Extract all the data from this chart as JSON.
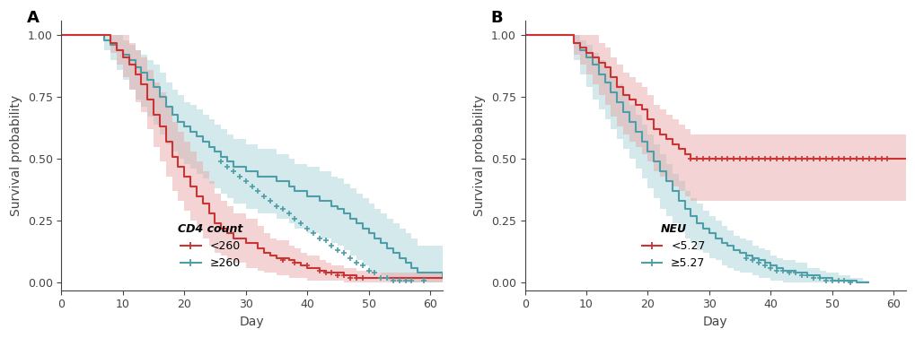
{
  "panel_A": {
    "label": "A",
    "xlabel": "Day",
    "ylabel": "Survival probability",
    "legend_title": "CD4 count",
    "legend_items": [
      "<260",
      "≥260"
    ],
    "red_color": "#CC3333",
    "blue_color": "#4D9EA8",
    "red_fill": "#E8A8A8",
    "blue_fill": "#A8D4D8",
    "red_line_x": [
      0,
      7,
      8,
      9,
      10,
      11,
      12,
      13,
      14,
      15,
      16,
      17,
      18,
      19,
      20,
      21,
      22,
      23,
      24,
      25,
      26,
      27,
      28,
      30,
      32,
      33,
      34,
      35,
      37,
      38,
      39,
      40,
      42,
      43,
      44,
      46,
      47,
      48,
      49,
      51,
      52,
      55,
      56,
      57,
      60,
      62
    ],
    "red_line_y": [
      1.0,
      1.0,
      0.97,
      0.94,
      0.91,
      0.88,
      0.84,
      0.8,
      0.74,
      0.68,
      0.63,
      0.57,
      0.51,
      0.47,
      0.43,
      0.39,
      0.35,
      0.32,
      0.28,
      0.24,
      0.22,
      0.2,
      0.18,
      0.16,
      0.14,
      0.12,
      0.11,
      0.1,
      0.09,
      0.08,
      0.07,
      0.06,
      0.05,
      0.04,
      0.04,
      0.03,
      0.03,
      0.02,
      0.02,
      0.02,
      0.02,
      0.02,
      0.02,
      0.02,
      0.02,
      0.02
    ],
    "red_upper_x": [
      0,
      7,
      8,
      9,
      10,
      11,
      12,
      13,
      14,
      15,
      16,
      17,
      18,
      19,
      20,
      21,
      22,
      23,
      24,
      25,
      26,
      27,
      28,
      30,
      32,
      33,
      34,
      35,
      37,
      38,
      39,
      40,
      42,
      43,
      44,
      46,
      47,
      48,
      49,
      51,
      52,
      55,
      56,
      57,
      60,
      62
    ],
    "red_upper_y": [
      1.0,
      1.0,
      1.0,
      1.0,
      1.0,
      0.97,
      0.94,
      0.91,
      0.86,
      0.81,
      0.77,
      0.71,
      0.65,
      0.61,
      0.57,
      0.53,
      0.49,
      0.45,
      0.41,
      0.36,
      0.33,
      0.31,
      0.28,
      0.26,
      0.23,
      0.2,
      0.18,
      0.17,
      0.15,
      0.14,
      0.12,
      0.11,
      0.09,
      0.08,
      0.07,
      0.06,
      0.06,
      0.05,
      0.05,
      0.04,
      0.04,
      0.04,
      0.04,
      0.04,
      0.04,
      0.04
    ],
    "red_lower_x": [
      0,
      7,
      8,
      9,
      10,
      11,
      12,
      13,
      14,
      15,
      16,
      17,
      18,
      19,
      20,
      21,
      22,
      23,
      24,
      25,
      26,
      27,
      28,
      30,
      32,
      33,
      34,
      35,
      37,
      38,
      39,
      40,
      42,
      43,
      44,
      46,
      47,
      48,
      49,
      51,
      52,
      55,
      56,
      57,
      60,
      62
    ],
    "red_lower_y": [
      1.0,
      1.0,
      0.93,
      0.88,
      0.83,
      0.78,
      0.73,
      0.69,
      0.62,
      0.55,
      0.49,
      0.43,
      0.37,
      0.33,
      0.29,
      0.25,
      0.21,
      0.18,
      0.15,
      0.12,
      0.11,
      0.09,
      0.08,
      0.06,
      0.05,
      0.04,
      0.04,
      0.03,
      0.02,
      0.02,
      0.02,
      0.01,
      0.01,
      0.01,
      0.01,
      0.0,
      0.0,
      0.0,
      0.0,
      0.0,
      0.0,
      0.0,
      0.0,
      0.0,
      0.0,
      0.0
    ],
    "blue_line_x": [
      0,
      5,
      7,
      8,
      9,
      10,
      11,
      12,
      13,
      14,
      15,
      16,
      17,
      18,
      19,
      20,
      21,
      22,
      23,
      24,
      25,
      26,
      27,
      28,
      30,
      32,
      35,
      37,
      38,
      40,
      42,
      44,
      45,
      46,
      47,
      48,
      49,
      50,
      51,
      52,
      53,
      54,
      55,
      56,
      57,
      58,
      62
    ],
    "blue_line_y": [
      1.0,
      1.0,
      0.98,
      0.96,
      0.94,
      0.92,
      0.9,
      0.87,
      0.85,
      0.82,
      0.79,
      0.75,
      0.71,
      0.68,
      0.65,
      0.63,
      0.61,
      0.59,
      0.57,
      0.55,
      0.53,
      0.51,
      0.49,
      0.47,
      0.45,
      0.43,
      0.41,
      0.39,
      0.37,
      0.35,
      0.33,
      0.31,
      0.3,
      0.28,
      0.26,
      0.24,
      0.22,
      0.2,
      0.18,
      0.16,
      0.14,
      0.12,
      0.1,
      0.08,
      0.06,
      0.04,
      0.02
    ],
    "blue_upper_x": [
      0,
      5,
      7,
      8,
      9,
      10,
      11,
      12,
      13,
      14,
      15,
      16,
      17,
      18,
      19,
      20,
      21,
      22,
      23,
      24,
      25,
      26,
      27,
      28,
      30,
      32,
      35,
      37,
      38,
      40,
      42,
      44,
      45,
      46,
      47,
      48,
      49,
      50,
      51,
      52,
      53,
      54,
      55,
      56,
      57,
      58,
      62
    ],
    "blue_upper_y": [
      1.0,
      1.0,
      1.0,
      1.0,
      1.0,
      0.98,
      0.96,
      0.94,
      0.92,
      0.9,
      0.88,
      0.85,
      0.81,
      0.78,
      0.76,
      0.73,
      0.72,
      0.7,
      0.68,
      0.66,
      0.64,
      0.62,
      0.6,
      0.58,
      0.56,
      0.54,
      0.52,
      0.5,
      0.48,
      0.47,
      0.45,
      0.43,
      0.42,
      0.4,
      0.38,
      0.36,
      0.34,
      0.32,
      0.3,
      0.28,
      0.26,
      0.24,
      0.22,
      0.2,
      0.18,
      0.15,
      0.12
    ],
    "blue_lower_x": [
      0,
      5,
      7,
      8,
      9,
      10,
      11,
      12,
      13,
      14,
      15,
      16,
      17,
      18,
      19,
      20,
      21,
      22,
      23,
      24,
      25,
      26,
      27,
      28,
      30,
      32,
      35,
      37,
      38,
      40,
      42,
      44,
      45,
      46,
      47,
      48,
      49,
      50,
      51,
      52,
      53,
      54,
      55,
      56,
      57,
      58,
      62
    ],
    "blue_lower_y": [
      1.0,
      1.0,
      0.94,
      0.9,
      0.86,
      0.82,
      0.78,
      0.74,
      0.71,
      0.67,
      0.64,
      0.6,
      0.56,
      0.53,
      0.5,
      0.48,
      0.46,
      0.44,
      0.42,
      0.4,
      0.38,
      0.36,
      0.34,
      0.32,
      0.3,
      0.28,
      0.26,
      0.24,
      0.22,
      0.2,
      0.18,
      0.16,
      0.15,
      0.13,
      0.11,
      0.09,
      0.07,
      0.05,
      0.04,
      0.03,
      0.01,
      0.01,
      0.0,
      0.0,
      0.0,
      0.0,
      0.0
    ],
    "red_censored_x": [
      36,
      38,
      40,
      42,
      43,
      44,
      45,
      46,
      47,
      48,
      49
    ],
    "red_censored_y": [
      0.09,
      0.08,
      0.07,
      0.05,
      0.04,
      0.04,
      0.03,
      0.03,
      0.02,
      0.02,
      0.02
    ],
    "blue_censored_x": [
      26,
      27,
      28,
      29,
      30,
      31,
      32,
      33,
      34,
      35,
      36,
      37,
      38,
      39,
      40,
      41,
      42,
      43,
      44,
      45,
      46,
      47,
      48,
      49,
      50,
      51,
      52,
      53,
      54,
      55,
      56,
      57,
      59
    ],
    "blue_censored_y": [
      0.49,
      0.47,
      0.45,
      0.43,
      0.41,
      0.39,
      0.37,
      0.35,
      0.33,
      0.31,
      0.3,
      0.28,
      0.26,
      0.24,
      0.22,
      0.2,
      0.18,
      0.17,
      0.15,
      0.13,
      0.12,
      0.1,
      0.08,
      0.07,
      0.05,
      0.04,
      0.02,
      0.02,
      0.01,
      0.01,
      0.01,
      0.01,
      0.01
    ],
    "xlim": [
      0,
      62
    ],
    "ylim": [
      -0.03,
      1.06
    ],
    "xticks": [
      0,
      10,
      20,
      30,
      40,
      50,
      60
    ],
    "yticks": [
      0.0,
      0.25,
      0.5,
      0.75,
      1.0
    ]
  },
  "panel_B": {
    "label": "B",
    "xlabel": "Day",
    "ylabel": "Survival probability",
    "legend_title": "NEU",
    "legend_items": [
      "<5.27",
      "≥5.27"
    ],
    "red_color": "#CC3333",
    "blue_color": "#4D9EA8",
    "red_fill": "#E8A8A8",
    "blue_fill": "#A8D4D8",
    "red_line_x": [
      0,
      7,
      8,
      9,
      10,
      11,
      12,
      13,
      14,
      15,
      16,
      17,
      18,
      19,
      20,
      21,
      22,
      23,
      24,
      25,
      26,
      27,
      28,
      30,
      32,
      35,
      37,
      38,
      40,
      42,
      44,
      46,
      48,
      50,
      52,
      54,
      56,
      60,
      62
    ],
    "red_line_y": [
      1.0,
      1.0,
      0.97,
      0.95,
      0.93,
      0.91,
      0.89,
      0.87,
      0.83,
      0.79,
      0.76,
      0.74,
      0.72,
      0.7,
      0.66,
      0.62,
      0.6,
      0.58,
      0.56,
      0.54,
      0.52,
      0.5,
      0.5,
      0.5,
      0.5,
      0.5,
      0.5,
      0.5,
      0.5,
      0.5,
      0.5,
      0.5,
      0.5,
      0.5,
      0.5,
      0.5,
      0.5,
      0.5,
      0.5
    ],
    "red_upper_x": [
      0,
      7,
      8,
      9,
      10,
      11,
      12,
      13,
      14,
      15,
      16,
      17,
      18,
      19,
      20,
      21,
      22,
      23,
      24,
      25,
      26,
      27,
      28,
      30,
      32,
      35,
      37,
      38,
      40,
      42,
      44,
      46,
      48,
      50,
      52,
      54,
      56,
      60,
      62
    ],
    "red_upper_y": [
      1.0,
      1.0,
      1.0,
      1.0,
      1.0,
      1.0,
      0.97,
      0.95,
      0.91,
      0.88,
      0.85,
      0.83,
      0.81,
      0.79,
      0.76,
      0.72,
      0.7,
      0.68,
      0.66,
      0.64,
      0.62,
      0.6,
      0.6,
      0.6,
      0.6,
      0.6,
      0.6,
      0.6,
      0.6,
      0.6,
      0.6,
      0.6,
      0.6,
      0.6,
      0.6,
      0.6,
      0.6,
      0.6,
      0.6
    ],
    "red_lower_x": [
      0,
      7,
      8,
      9,
      10,
      11,
      12,
      13,
      14,
      15,
      16,
      17,
      18,
      19,
      20,
      21,
      22,
      23,
      24,
      25,
      26,
      27,
      28,
      30,
      32,
      35,
      37,
      38,
      40,
      42,
      44,
      46,
      48,
      50,
      52,
      54,
      56,
      60,
      62
    ],
    "red_lower_y": [
      1.0,
      1.0,
      0.92,
      0.88,
      0.84,
      0.8,
      0.76,
      0.72,
      0.67,
      0.63,
      0.6,
      0.57,
      0.55,
      0.52,
      0.49,
      0.45,
      0.43,
      0.41,
      0.39,
      0.37,
      0.35,
      0.33,
      0.33,
      0.33,
      0.33,
      0.33,
      0.33,
      0.33,
      0.33,
      0.33,
      0.33,
      0.33,
      0.33,
      0.33,
      0.33,
      0.33,
      0.33,
      0.33,
      0.33
    ],
    "blue_line_x": [
      0,
      6,
      8,
      9,
      10,
      11,
      12,
      13,
      14,
      15,
      16,
      17,
      18,
      19,
      20,
      21,
      22,
      23,
      24,
      25,
      26,
      27,
      28,
      29,
      30,
      31,
      32,
      33,
      34,
      35,
      36,
      37,
      38,
      39,
      40,
      41,
      42,
      43,
      44,
      45,
      46,
      47,
      48,
      49,
      50,
      51,
      52,
      53,
      54,
      55,
      56
    ],
    "blue_line_y": [
      1.0,
      1.0,
      0.97,
      0.94,
      0.91,
      0.88,
      0.84,
      0.81,
      0.77,
      0.73,
      0.69,
      0.65,
      0.61,
      0.57,
      0.53,
      0.49,
      0.45,
      0.41,
      0.37,
      0.33,
      0.3,
      0.27,
      0.24,
      0.22,
      0.2,
      0.18,
      0.16,
      0.15,
      0.13,
      0.12,
      0.11,
      0.1,
      0.09,
      0.08,
      0.07,
      0.06,
      0.05,
      0.05,
      0.04,
      0.04,
      0.03,
      0.03,
      0.02,
      0.02,
      0.01,
      0.01,
      0.01,
      0.01,
      0.0,
      0.0,
      0.0
    ],
    "blue_upper_x": [
      0,
      6,
      8,
      9,
      10,
      11,
      12,
      13,
      14,
      15,
      16,
      17,
      18,
      19,
      20,
      21,
      22,
      23,
      24,
      25,
      26,
      27,
      28,
      29,
      30,
      31,
      32,
      33,
      34,
      35,
      36,
      37,
      38,
      39,
      40,
      41,
      42,
      43,
      44,
      45,
      46,
      47,
      48,
      49,
      50,
      51,
      52,
      53,
      54,
      55,
      56
    ],
    "blue_upper_y": [
      1.0,
      1.0,
      1.0,
      0.98,
      0.96,
      0.93,
      0.9,
      0.87,
      0.83,
      0.8,
      0.76,
      0.72,
      0.68,
      0.64,
      0.6,
      0.56,
      0.52,
      0.48,
      0.44,
      0.41,
      0.37,
      0.34,
      0.32,
      0.29,
      0.27,
      0.25,
      0.23,
      0.21,
      0.19,
      0.18,
      0.17,
      0.15,
      0.14,
      0.13,
      0.11,
      0.1,
      0.09,
      0.09,
      0.08,
      0.08,
      0.06,
      0.06,
      0.05,
      0.04,
      0.04,
      0.03,
      0.03,
      0.02,
      0.02,
      0.01,
      0.01
    ],
    "blue_lower_x": [
      0,
      6,
      8,
      9,
      10,
      11,
      12,
      13,
      14,
      15,
      16,
      17,
      18,
      19,
      20,
      21,
      22,
      23,
      24,
      25,
      26,
      27,
      28,
      29,
      30,
      31,
      32,
      33,
      34,
      35,
      36,
      37,
      38,
      39,
      40,
      41,
      42,
      43,
      44,
      45,
      46,
      47,
      48,
      49,
      50,
      51,
      52,
      53,
      54,
      55,
      56
    ],
    "blue_lower_y": [
      1.0,
      1.0,
      0.9,
      0.84,
      0.79,
      0.74,
      0.7,
      0.66,
      0.62,
      0.58,
      0.54,
      0.5,
      0.46,
      0.42,
      0.38,
      0.34,
      0.3,
      0.27,
      0.24,
      0.21,
      0.18,
      0.16,
      0.13,
      0.12,
      0.1,
      0.09,
      0.07,
      0.06,
      0.05,
      0.04,
      0.04,
      0.03,
      0.02,
      0.02,
      0.01,
      0.01,
      0.0,
      0.0,
      0.0,
      0.0,
      0.0,
      0.0,
      0.0,
      0.0,
      0.0,
      0.0,
      0.0,
      0.0,
      0.0,
      0.0,
      0.0
    ],
    "red_censored_x": [
      27,
      28,
      29,
      30,
      31,
      32,
      33,
      34,
      35,
      36,
      37,
      38,
      39,
      40,
      41,
      42,
      43,
      44,
      45,
      46,
      47,
      48,
      49,
      50,
      51,
      52,
      53,
      54,
      55,
      56,
      57,
      58,
      59
    ],
    "red_censored_y": [
      0.5,
      0.5,
      0.5,
      0.5,
      0.5,
      0.5,
      0.5,
      0.5,
      0.5,
      0.5,
      0.5,
      0.5,
      0.5,
      0.5,
      0.5,
      0.5,
      0.5,
      0.5,
      0.5,
      0.5,
      0.5,
      0.5,
      0.5,
      0.5,
      0.5,
      0.5,
      0.5,
      0.5,
      0.5,
      0.5,
      0.5,
      0.5,
      0.5
    ],
    "blue_censored_x": [
      36,
      37,
      38,
      39,
      40,
      41,
      42,
      43,
      44,
      45,
      46,
      47,
      48,
      49,
      50,
      51,
      52,
      53
    ],
    "blue_censored_y": [
      0.1,
      0.09,
      0.08,
      0.07,
      0.06,
      0.05,
      0.05,
      0.04,
      0.04,
      0.03,
      0.03,
      0.02,
      0.02,
      0.01,
      0.01,
      0.01,
      0.01,
      0.0
    ],
    "xlim": [
      0,
      62
    ],
    "ylim": [
      -0.03,
      1.06
    ],
    "xticks": [
      0,
      10,
      20,
      30,
      40,
      50,
      60
    ],
    "yticks": [
      0.0,
      0.25,
      0.5,
      0.75,
      1.0
    ]
  },
  "bg_color": "#FFFFFF",
  "axis_color": "#444444",
  "fontsize_label": 10,
  "fontsize_tick": 9,
  "fontsize_legend": 9,
  "fontsize_panel_label": 13
}
